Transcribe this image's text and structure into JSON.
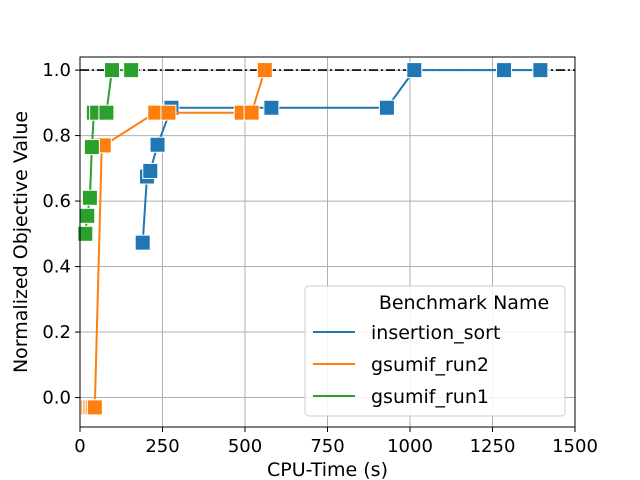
{
  "chart_data": {
    "type": "line",
    "title": "",
    "xlabel": "CPU-Time (s)",
    "ylabel": "Normalized Objective Value",
    "xlim": [
      0,
      1500
    ],
    "ylim": [
      -0.09,
      1.04
    ],
    "xticks": [
      0,
      250,
      500,
      750,
      1000,
      1250,
      1500
    ],
    "yticks": [
      0.0,
      0.2,
      0.4,
      0.6,
      0.8,
      1.0
    ],
    "xtick_labels": [
      "0",
      "250",
      "500",
      "750",
      "1000",
      "1250",
      "1500"
    ],
    "ytick_labels": [
      "0.0",
      "0.2",
      "0.4",
      "0.6",
      "0.8",
      "1.0"
    ],
    "grid": true,
    "reference_line": {
      "y": 1.0,
      "style": "dash-dot",
      "color": "#000000"
    },
    "legend": {
      "title": "Benchmark Name",
      "location": "lower-right"
    },
    "series": [
      {
        "name": "insertion_sort",
        "color": "#1f77b4",
        "x": [
          190,
          203,
          213,
          235,
          277,
          580,
          930,
          1013,
          1285,
          1395
        ],
        "y": [
          0.473,
          0.675,
          0.692,
          0.772,
          0.885,
          0.885,
          0.885,
          1.0,
          1.0,
          1.0
        ]
      },
      {
        "name": "gsumif_run2",
        "color": "#ff7f0e",
        "x": [
          25,
          30,
          35,
          40,
          45,
          66,
          72,
          228,
          268,
          490,
          520,
          560
        ],
        "y": [
          -0.03,
          -0.03,
          -0.03,
          -0.03,
          -0.03,
          0.77,
          0.77,
          0.87,
          0.87,
          0.87,
          0.87,
          1.0
        ]
      },
      {
        "name": "gsumif_run1",
        "color": "#2ca02c",
        "x": [
          16,
          22,
          30,
          36,
          42,
          52,
          80,
          97,
          155
        ],
        "y": [
          0.5,
          0.555,
          0.61,
          0.765,
          0.87,
          0.87,
          0.87,
          1.0,
          1.0
        ]
      }
    ]
  }
}
